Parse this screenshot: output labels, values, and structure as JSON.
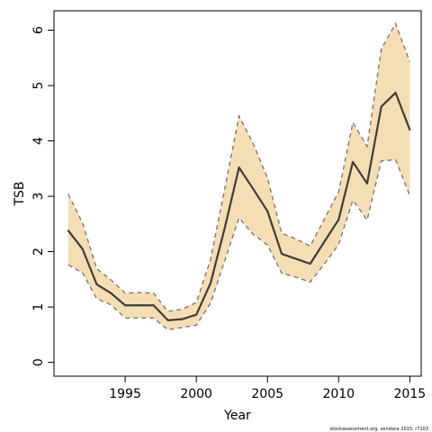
{
  "chart_data": {
    "type": "area",
    "xlabel": "Year",
    "ylabel": "TSB",
    "xlim": [
      1990.0,
      2015.8
    ],
    "ylim": [
      -0.25,
      6.35
    ],
    "xticks": [
      1995,
      2000,
      2005,
      2010,
      2015
    ],
    "yticks": [
      0,
      1,
      2,
      3,
      4,
      5,
      6
    ],
    "x": [
      1991,
      1992,
      1993,
      1994,
      1995,
      1996,
      1997,
      1998,
      1999,
      2000,
      2001,
      2002,
      2003,
      2004,
      2005,
      2006,
      2007,
      2008,
      2009,
      2010,
      2011,
      2012,
      2013,
      2014,
      2015
    ],
    "series": [
      {
        "role": "estimate",
        "values": [
          2.38,
          2.05,
          1.41,
          1.25,
          1.03,
          1.03,
          1.03,
          0.76,
          0.78,
          0.86,
          1.43,
          2.43,
          3.52,
          3.13,
          2.73,
          1.96,
          1.87,
          1.78,
          2.18,
          2.58,
          3.62,
          3.23,
          4.62,
          4.87,
          4.2
        ]
      },
      {
        "role": "upper",
        "values": [
          3.04,
          2.52,
          1.69,
          1.49,
          1.25,
          1.26,
          1.25,
          0.92,
          0.96,
          1.08,
          1.86,
          3.14,
          4.45,
          3.95,
          3.33,
          2.33,
          2.23,
          2.1,
          2.59,
          3.08,
          4.33,
          3.9,
          5.66,
          6.12,
          5.43
        ]
      },
      {
        "role": "lower",
        "values": [
          1.76,
          1.62,
          1.15,
          1.04,
          0.8,
          0.8,
          0.8,
          0.59,
          0.63,
          0.67,
          1.07,
          1.84,
          2.61,
          2.31,
          2.12,
          1.61,
          1.54,
          1.45,
          1.78,
          2.13,
          2.93,
          2.57,
          3.64,
          3.66,
          3.01
        ]
      }
    ],
    "colors": {
      "band_fill": "#f5deb3",
      "band_edge": "#7a6e6e",
      "line": "#3d3d3d",
      "axis": "#000000"
    },
    "grid": false,
    "legend": "none"
  },
  "credit": "stockassessment.org,  vendace  2015, r7103"
}
